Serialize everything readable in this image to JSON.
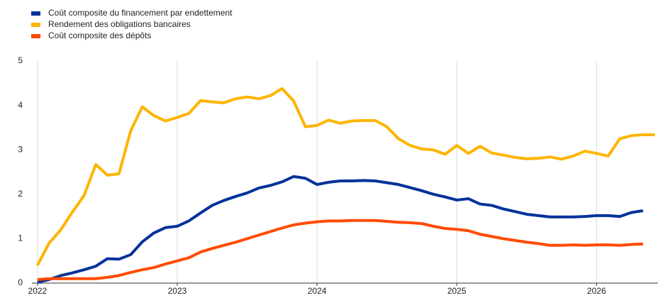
{
  "chart_data": {
    "type": "line",
    "x": [
      2022,
      2022.083,
      2022.167,
      2022.25,
      2022.333,
      2022.417,
      2022.5,
      2022.583,
      2022.667,
      2022.75,
      2022.833,
      2022.917,
      2023,
      2023.083,
      2023.167,
      2023.25,
      2023.333,
      2023.417,
      2023.5,
      2023.583,
      2023.667,
      2023.75,
      2023.833,
      2023.917,
      2024,
      2024.083,
      2024.167,
      2024.25,
      2024.333,
      2024.417,
      2024.5,
      2024.583,
      2024.667,
      2024.75,
      2024.833,
      2024.917,
      2025,
      2025.083,
      2025.167,
      2025.25,
      2025.333,
      2025.417,
      2025.5,
      2025.583,
      2025.667,
      2025.75,
      2025.833,
      2025.917,
      2026,
      2026.083,
      2026.167,
      2026.25,
      2026.333,
      2026.417
    ],
    "series": [
      {
        "name": "Coût composite du financement par endettement",
        "color": "#003299",
        "values": [
          0.02,
          0.08,
          0.17,
          0.23,
          0.3,
          0.38,
          0.55,
          0.54,
          0.64,
          0.93,
          1.13,
          1.25,
          1.28,
          1.4,
          1.58,
          1.75,
          1.86,
          1.95,
          2.03,
          2.14,
          2.2,
          2.28,
          2.4,
          2.36,
          2.22,
          2.27,
          2.3,
          2.3,
          2.31,
          2.3,
          2.26,
          2.22,
          2.15,
          2.08,
          2.0,
          1.94,
          1.87,
          1.9,
          1.78,
          1.75,
          1.67,
          1.61,
          1.55,
          1.52,
          1.49,
          1.49,
          1.49,
          1.5,
          1.52,
          1.52,
          1.5,
          1.59,
          1.63,
          null
        ]
      },
      {
        "name": "Rendement des obligations bancaires",
        "color": "#ffb400",
        "values": [
          0.4,
          0.9,
          1.2,
          1.6,
          1.97,
          2.67,
          2.43,
          2.46,
          3.43,
          3.97,
          3.77,
          3.65,
          3.73,
          3.82,
          4.11,
          4.08,
          4.06,
          4.15,
          4.19,
          4.15,
          4.22,
          4.38,
          4.1,
          3.52,
          3.55,
          3.67,
          3.6,
          3.65,
          3.66,
          3.66,
          3.52,
          3.25,
          3.1,
          3.02,
          3.0,
          2.9,
          3.1,
          2.92,
          3.08,
          2.93,
          2.88,
          2.83,
          2.8,
          2.81,
          2.84,
          2.79,
          2.86,
          2.97,
          2.92,
          2.86,
          3.25,
          3.32,
          3.34,
          3.34
        ]
      },
      {
        "name": "Coût composite des dépôts",
        "color": "#ff4b00",
        "values": [
          0.08,
          0.1,
          0.1,
          0.1,
          0.1,
          0.1,
          0.13,
          0.17,
          0.24,
          0.3,
          0.35,
          0.43,
          0.5,
          0.57,
          0.7,
          0.78,
          0.85,
          0.92,
          1.0,
          1.08,
          1.16,
          1.24,
          1.31,
          1.35,
          1.38,
          1.4,
          1.4,
          1.41,
          1.41,
          1.41,
          1.39,
          1.37,
          1.36,
          1.34,
          1.28,
          1.23,
          1.21,
          1.18,
          1.1,
          1.05,
          1.0,
          0.96,
          0.92,
          0.89,
          0.85,
          0.85,
          0.86,
          0.85,
          0.86,
          0.86,
          0.85,
          0.87,
          0.88,
          null
        ]
      }
    ],
    "xlim": [
      2021.96,
      2026.44
    ],
    "xticks": [
      2022,
      2023,
      2024,
      2025,
      2026
    ],
    "ylim": [
      0,
      5
    ],
    "yticks": [
      0,
      1,
      2,
      3,
      4,
      5
    ],
    "grid": "x",
    "legend": "top-left"
  }
}
